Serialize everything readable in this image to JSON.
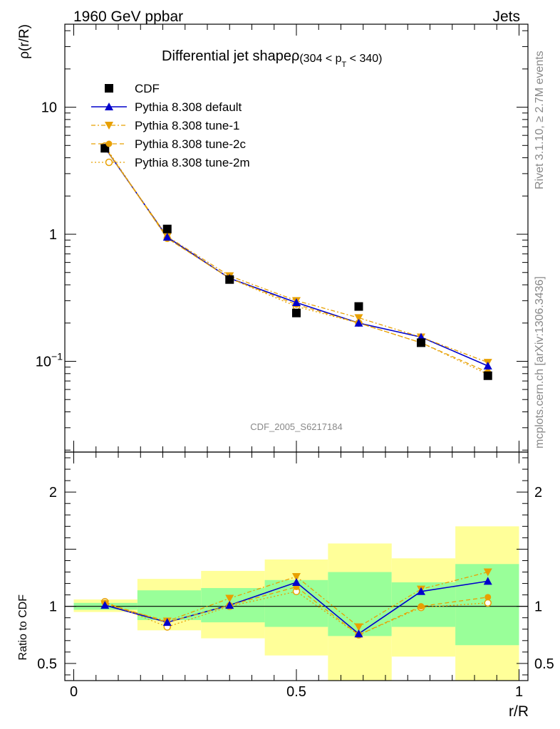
{
  "header": {
    "left": "1960 GeV ppbar",
    "right": "Jets"
  },
  "title": {
    "main": "Differential jet shapeρ",
    "cond_pre": "(304 < p",
    "cond_sub": "T",
    "cond_post": " < 340)"
  },
  "side_labels": {
    "rivet": "Rivet 3.1.10, ≥ 2.7M events",
    "mcplots": "mcplots.cern.ch [arXiv:1306.3436]"
  },
  "watermark": "CDF_2005_S6217184",
  "colors": {
    "data": "#000000",
    "default": "#0000cc",
    "tunes": "#e8a000",
    "band_inner": "#99ff99",
    "band_outer": "#ffff99"
  },
  "chart_data": [
    {
      "type": "scatter",
      "panel": "main",
      "ylabel": "ρ(r/R)",
      "yscale": "log",
      "ylim": [
        0.0193,
        45
      ],
      "xlim": [
        -0.02,
        1.02
      ],
      "yticks": [
        {
          "value": 10,
          "label": "10"
        },
        {
          "value": 1,
          "label": "1"
        },
        {
          "value": 0.1,
          "label": "10",
          "sup": "−1"
        }
      ],
      "x": [
        0.07,
        0.21,
        0.35,
        0.5,
        0.64,
        0.78,
        0.93
      ],
      "series": [
        {
          "name": "CDF",
          "style": "data",
          "values": [
            4.75,
            1.1,
            0.44,
            0.24,
            0.27,
            0.14,
            0.077
          ]
        },
        {
          "name": "Pythia 8.308 default",
          "style": "default",
          "values": [
            4.8,
            0.95,
            0.45,
            0.29,
            0.2,
            0.155,
            0.092
          ]
        },
        {
          "name": "Pythia 8.308 tune-1",
          "style": "tune1",
          "values": [
            4.8,
            0.96,
            0.47,
            0.3,
            0.22,
            0.155,
            0.098
          ]
        },
        {
          "name": "Pythia 8.308 tune-2c",
          "style": "tune2c",
          "values": [
            4.85,
            0.93,
            0.45,
            0.28,
            0.2,
            0.14,
            0.082
          ]
        },
        {
          "name": "Pythia 8.308 tune-2m",
          "style": "tune2m",
          "values": [
            4.95,
            0.93,
            0.45,
            0.27,
            0.2,
            0.14,
            0.079
          ]
        }
      ]
    },
    {
      "type": "line",
      "panel": "ratio",
      "ylabel": "Ratio to CDF",
      "xlabel": "r/R",
      "ylim": [
        0.35,
        2.35
      ],
      "xlim": [
        -0.02,
        1.02
      ],
      "yticks": [
        {
          "value": 0.5,
          "label": "0.5"
        },
        {
          "value": 1,
          "label": "1"
        },
        {
          "value": 2,
          "label": "2"
        }
      ],
      "xticks": [
        {
          "value": 0,
          "label": "0"
        },
        {
          "value": 0.5,
          "label": "0.5"
        },
        {
          "value": 1,
          "label": "1"
        }
      ],
      "bins": [
        {
          "lo": 0.0,
          "hi": 0.143,
          "inner": [
            0.97,
            1.03
          ],
          "outer": [
            0.95,
            1.06
          ]
        },
        {
          "lo": 0.143,
          "hi": 0.286,
          "inner": [
            0.88,
            1.14
          ],
          "outer": [
            0.79,
            1.24
          ]
        },
        {
          "lo": 0.286,
          "hi": 0.429,
          "inner": [
            0.86,
            1.16
          ],
          "outer": [
            0.72,
            1.31
          ]
        },
        {
          "lo": 0.429,
          "hi": 0.571,
          "inner": [
            0.82,
            1.23
          ],
          "outer": [
            0.57,
            1.41
          ]
        },
        {
          "lo": 0.571,
          "hi": 0.714,
          "inner": [
            0.74,
            1.3
          ],
          "outer": [
            0.35,
            1.55
          ]
        },
        {
          "lo": 0.714,
          "hi": 0.857,
          "inner": [
            0.82,
            1.21
          ],
          "outer": [
            0.56,
            1.42
          ]
        },
        {
          "lo": 0.857,
          "hi": 1.0,
          "inner": [
            0.66,
            1.37
          ],
          "outer": [
            0.35,
            1.7
          ]
        }
      ],
      "reference": 1,
      "x": [
        0.07,
        0.21,
        0.35,
        0.5,
        0.64,
        0.78,
        0.93
      ],
      "series": [
        {
          "name": "Pythia 8.308 default",
          "style": "default",
          "values": [
            1.01,
            0.86,
            1.01,
            1.21,
            0.76,
            1.13,
            1.22
          ]
        },
        {
          "name": "Pythia 8.308 tune-1",
          "style": "tune1",
          "values": [
            1.02,
            0.87,
            1.07,
            1.26,
            0.82,
            1.15,
            1.3
          ]
        },
        {
          "name": "Pythia 8.308 tune-2c",
          "style": "tune2c",
          "values": [
            1.03,
            0.86,
            1.01,
            1.17,
            0.75,
            1.0,
            1.08
          ]
        },
        {
          "name": "Pythia 8.308 tune-2m",
          "style": "tune2m",
          "values": [
            1.04,
            0.82,
            1.0,
            1.13,
            0.75,
            0.99,
            1.03
          ]
        }
      ]
    }
  ]
}
